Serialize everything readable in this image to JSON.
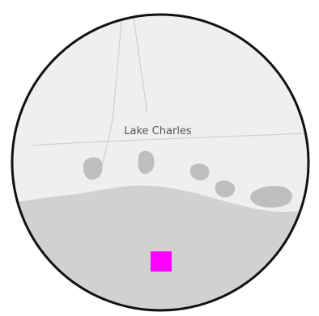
{
  "map": {
    "city_label": "Lake Charles",
    "colors": {
      "land": "#efefef",
      "water": "#d0d2d2",
      "inland_water": "#bdbfbf",
      "roads": "#cfcfcf",
      "border": "#111111",
      "marker": "#ff00ff",
      "outer_background": "#ffffff"
    },
    "marker_shape": "square",
    "frame_shape": "circle"
  }
}
